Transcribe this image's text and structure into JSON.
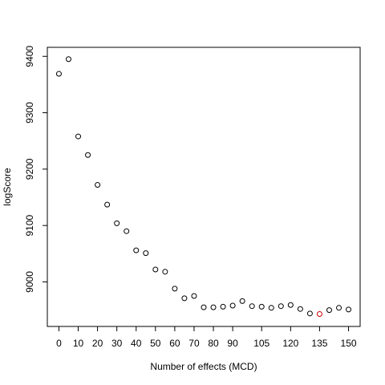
{
  "chart_data": {
    "type": "scatter",
    "title": "",
    "xlabel": "Number of effects (MCD)",
    "ylabel": "logScore",
    "x": [
      0,
      5,
      10,
      15,
      20,
      25,
      30,
      35,
      40,
      45,
      50,
      55,
      60,
      65,
      70,
      75,
      80,
      85,
      90,
      95,
      100,
      105,
      110,
      115,
      120,
      125,
      130,
      135,
      140,
      145,
      150
    ],
    "y": [
      9369,
      9395,
      9258,
      9225,
      9172,
      9137,
      9104,
      9090,
      9056,
      9051,
      9022,
      9018,
      8988,
      8971,
      8975,
      8955,
      8955,
      8956,
      8958,
      8966,
      8957,
      8956,
      8954,
      8957,
      8959,
      8952,
      8944,
      8943,
      8950,
      8954,
      8951
    ],
    "highlight_index": 27,
    "highlight_color": "#cc0000",
    "point_color": "#000000",
    "xlim": [
      -6,
      156
    ],
    "ylim": [
      8921,
      9416
    ],
    "x_ticks": [
      0,
      10,
      20,
      30,
      40,
      50,
      60,
      70,
      80,
      90,
      105,
      120,
      135,
      150
    ],
    "y_ticks": [
      9000,
      9100,
      9200,
      9300,
      9400
    ],
    "grid": false,
    "legend": "none"
  }
}
